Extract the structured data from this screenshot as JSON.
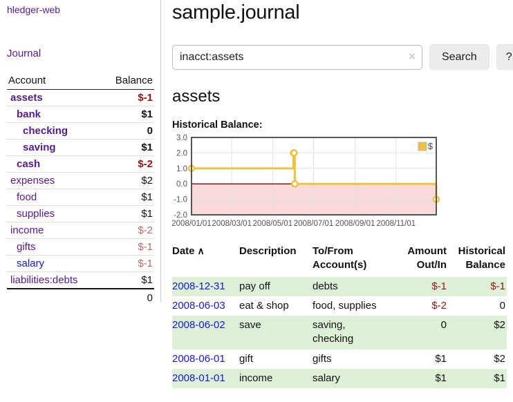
{
  "app": {
    "title": "hledger-web",
    "nav_journal": "Journal"
  },
  "colors": {
    "accent_purple": "#551a8b",
    "link_blue": "#1717d6",
    "negative": "#991111",
    "negative_muted": "#b16a6a",
    "stripe_green": "#dff0d8",
    "chart_line": "#edc240",
    "chart_negative_fill": "#f9d9d9",
    "chart_zero_line": "#8b0000",
    "chart_border": "#545454"
  },
  "icons": {
    "sort_ascending": "∧",
    "clear_search": "×"
  },
  "sidebar": {
    "columns": [
      "Account",
      "Balance"
    ],
    "accounts": [
      {
        "name": "assets",
        "depth": 0,
        "bold": true,
        "color": "purple",
        "balance": "$-1",
        "balance_class": "neg"
      },
      {
        "name": "bank",
        "depth": 1,
        "bold": true,
        "color": "purple",
        "balance": "$1",
        "balance_class": ""
      },
      {
        "name": "checking",
        "depth": 2,
        "bold": true,
        "color": "purple",
        "balance": "0",
        "balance_class": ""
      },
      {
        "name": "saving",
        "depth": 2,
        "bold": true,
        "color": "purple",
        "balance": "$1",
        "balance_class": ""
      },
      {
        "name": "cash",
        "depth": 1,
        "bold": true,
        "color": "purple",
        "balance": "$-2",
        "balance_class": "neg"
      },
      {
        "name": "expenses",
        "depth": 0,
        "bold": false,
        "color": "purple",
        "balance": "$2",
        "balance_class": ""
      },
      {
        "name": "food",
        "depth": 1,
        "bold": false,
        "color": "purple",
        "balance": "$1",
        "balance_class": ""
      },
      {
        "name": "supplies",
        "depth": 1,
        "bold": false,
        "color": "purple",
        "balance": "$1",
        "balance_class": ""
      },
      {
        "name": "income",
        "depth": 0,
        "bold": false,
        "color": "purple",
        "balance": "$-2",
        "balance_class": "negmuted"
      },
      {
        "name": "gifts",
        "depth": 1,
        "bold": false,
        "color": "purple",
        "balance": "$-1",
        "balance_class": "negmuted"
      },
      {
        "name": "salary",
        "depth": 1,
        "bold": false,
        "color": "blue",
        "balance": "$-1",
        "balance_class": "negmuted"
      },
      {
        "name": "liabilities:debts",
        "depth": 0,
        "bold": false,
        "color": "purple",
        "balance": "$1",
        "balance_class": ""
      }
    ],
    "total": "0"
  },
  "main": {
    "title": "sample.journal",
    "account_heading": "assets"
  },
  "search": {
    "value": "inacct:assets",
    "button_label": "Search",
    "help_label": "?"
  },
  "chart_data": {
    "type": "line-step",
    "title": "Historical Balance:",
    "legend": [
      {
        "label": "$",
        "color": "#edc240"
      }
    ],
    "legend_position": "top-right",
    "grid": true,
    "xlim": [
      "2008-01-01",
      "2008-12-31"
    ],
    "ylim": [
      -2,
      3
    ],
    "y_ticks": [
      "3.0",
      "2.0",
      "1.0",
      "0.0",
      "-1.0",
      "-2.0"
    ],
    "x_ticks": [
      "2008/01/01",
      "2008/03/01",
      "2008/05/01",
      "2008/07/01",
      "2008/09/01",
      "2008/11/01"
    ],
    "points": [
      {
        "date": "2008-01-01",
        "value": 1
      },
      {
        "date": "2008-06-01",
        "value": 2
      },
      {
        "date": "2008-06-02",
        "value": 2
      },
      {
        "date": "2008-06-03",
        "value": 0
      },
      {
        "date": "2008-12-31",
        "value": -1
      }
    ]
  },
  "register": {
    "headers": [
      {
        "label": "Date",
        "name": "date",
        "sort": "asc",
        "align": "left"
      },
      {
        "label": "Description",
        "name": "description",
        "align": "left"
      },
      {
        "label": "To/From Account(s)",
        "name": "to-from-accounts",
        "align": "left"
      },
      {
        "label": "Amount Out/In",
        "name": "amount-out-in",
        "align": "right"
      },
      {
        "label": "Historical Balance",
        "name": "historical-balance",
        "align": "right"
      }
    ],
    "rows": [
      {
        "date": "2008-12-31",
        "description": "pay off",
        "to_from": "debts",
        "amount": "$-1",
        "amount_neg": true,
        "balance": "$-1",
        "balance_neg": true
      },
      {
        "date": "2008-06-03",
        "description": "eat & shop",
        "to_from": "food, supplies",
        "amount": "$-2",
        "amount_neg": true,
        "balance": "0",
        "balance_neg": false
      },
      {
        "date": "2008-06-02",
        "description": "save",
        "to_from": "saving,\nchecking",
        "amount": "0",
        "amount_neg": false,
        "balance": "$2",
        "balance_neg": false
      },
      {
        "date": "2008-06-01",
        "description": "gift",
        "to_from": "gifts",
        "amount": "$1",
        "amount_neg": false,
        "balance": "$2",
        "balance_neg": false
      },
      {
        "date": "2008-01-01",
        "description": "income",
        "to_from": "salary",
        "amount": "$1",
        "amount_neg": false,
        "balance": "$1",
        "balance_neg": false
      }
    ]
  }
}
